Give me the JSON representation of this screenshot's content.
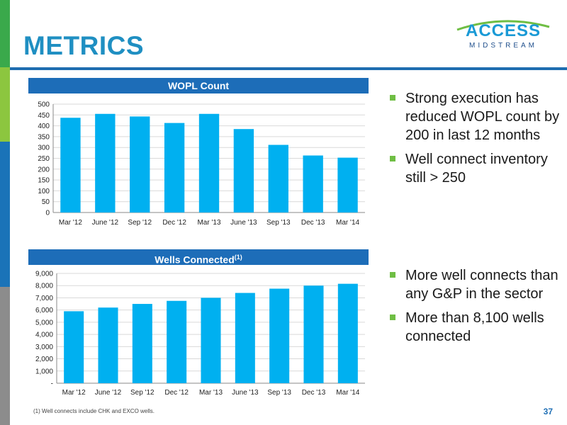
{
  "slide": {
    "title": "METRICS",
    "page_number": "37",
    "footnote": "(1)  Well connects include CHK and EXCO wells."
  },
  "logo": {
    "line1": "ACCESS",
    "line2": "MIDSTREAM"
  },
  "colors": {
    "bar": "#00b0f0",
    "header": "#1d6db8",
    "title": "#1f8fc2",
    "bullet": "#6fbe44"
  },
  "bullets_top": [
    "Strong execution has reduced WOPL count by 200 in last 12 months",
    "Well connect inventory still > 250"
  ],
  "bullets_bottom": [
    "More well connects than any G&P in the sector",
    "More than 8,100 wells connected"
  ],
  "chart_data": [
    {
      "type": "bar",
      "title": "WOPL Count",
      "categories": [
        "Mar '12",
        "June '12",
        "Sep '12",
        "Dec '12",
        "Mar '13",
        "June '13",
        "Sep '13",
        "Dec '13",
        "Mar '14"
      ],
      "values": [
        437,
        455,
        443,
        413,
        455,
        385,
        312,
        263,
        253
      ],
      "ylim": [
        0,
        500
      ],
      "yticks": [
        "0",
        "50",
        "100",
        "150",
        "200",
        "250",
        "300",
        "350",
        "400",
        "450",
        "500"
      ],
      "grid": true
    },
    {
      "type": "bar",
      "title": "Wells Connected",
      "title_sup": "(1)",
      "categories": [
        "Mar '12",
        "June '12",
        "Sep '12",
        "Dec '12",
        "Mar '13",
        "June '13",
        "Sep '13",
        "Dec '13",
        "Mar '14"
      ],
      "values": [
        5900,
        6200,
        6500,
        6750,
        7000,
        7400,
        7750,
        8000,
        8150
      ],
      "ylim": [
        0,
        9000
      ],
      "yticks": [
        "-",
        "1,000",
        "2,000",
        "3,000",
        "4,000",
        "5,000",
        "6,000",
        "7,000",
        "8,000",
        "9,000"
      ],
      "grid": true
    }
  ]
}
